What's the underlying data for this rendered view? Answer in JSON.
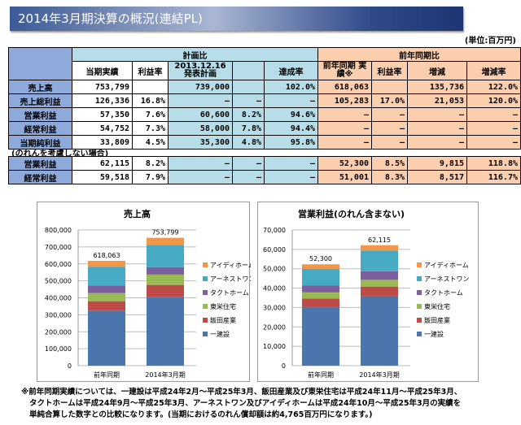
{
  "title": "2014年3月期決算の概況(連結PL)",
  "unit": "(単位:百万円)",
  "table": {
    "group_plan": "計画比",
    "group_prev": "前年同期比",
    "headers": [
      "当期実績",
      "利益率",
      "2013.12.16 発表計画",
      "",
      "達成率",
      "前年同期 実績※",
      "利益率",
      "増減",
      "増減率"
    ],
    "rows": [
      {
        "label": "売上高",
        "cells": [
          "753,799",
          "",
          "739,000",
          "",
          "102.0%",
          "618,063",
          "",
          "135,736",
          "122.0%"
        ]
      },
      {
        "label": "売上総利益",
        "cells": [
          "126,336",
          "16.8%",
          "–",
          "–",
          "–",
          "105,283",
          "17.0%",
          "21,053",
          "120.0%"
        ]
      },
      {
        "label": "営業利益",
        "cells": [
          "57,350",
          "7.6%",
          "60,600",
          "8.2%",
          "94.6%",
          "–",
          "–",
          "–",
          "–"
        ]
      },
      {
        "label": "経常利益",
        "cells": [
          "54,752",
          "7.3%",
          "58,000",
          "7.8%",
          "94.4%",
          "–",
          "–",
          "–",
          "–"
        ]
      },
      {
        "label": "当期純利益",
        "cells": [
          "33,809",
          "4.5%",
          "35,300",
          "4.8%",
          "95.8%",
          "–",
          "–",
          "–",
          "–"
        ]
      }
    ]
  },
  "note_goodwill": "(のれんを考慮しない場合)",
  "table2": {
    "rows": [
      {
        "label": "営業利益",
        "cells": [
          "62,115",
          "8.2%",
          "–",
          "–",
          "–",
          "52,300",
          "8.5%",
          "9,815",
          "118.8%"
        ]
      },
      {
        "label": "経常利益",
        "cells": [
          "59,518",
          "7.9%",
          "–",
          "–",
          "–",
          "51,001",
          "8.3%",
          "8,517",
          "116.7%"
        ]
      }
    ]
  },
  "chart_data": [
    {
      "type": "bar",
      "stacked": true,
      "title": "売上高",
      "categories": [
        "前年同期",
        "2014年3月期"
      ],
      "ylim": [
        0,
        800000
      ],
      "yticks": [
        "0",
        "100,000",
        "200,000",
        "300,000",
        "400,000",
        "500,000",
        "600,000",
        "700,000",
        "800,000"
      ],
      "tickstep": 100000,
      "totals": [
        "618,063",
        "753,799"
      ],
      "totalvals": [
        618063,
        753799
      ],
      "series": [
        {
          "name": "一建設",
          "color": "#4a76ad",
          "values": [
            324000,
            406000
          ]
        },
        {
          "name": "飯田産業",
          "color": "#be4b48",
          "values": [
            56000,
            70000
          ]
        },
        {
          "name": "東栄住宅",
          "color": "#98b954",
          "values": [
            48000,
            61000
          ]
        },
        {
          "name": "タクトホーム",
          "color": "#7d5fa0",
          "values": [
            45000,
            44000
          ]
        },
        {
          "name": "アーネストワン",
          "color": "#46aac5",
          "values": [
            110000,
            130000
          ]
        },
        {
          "name": "アイディホーム",
          "color": "#f59646",
          "values": [
            35063,
            42799
          ]
        }
      ]
    },
    {
      "type": "bar",
      "stacked": true,
      "title": "営業利益(のれん含まない)",
      "categories": [
        "前年同期",
        "2014年3月期"
      ],
      "ylim": [
        0,
        70000
      ],
      "yticks": [
        "0",
        "10,000",
        "20,000",
        "30,000",
        "40,000",
        "50,000",
        "60,000",
        "70,000"
      ],
      "tickstep": 10000,
      "totals": [
        "52,300",
        "62,115"
      ],
      "totalvals": [
        52300,
        62115
      ],
      "series": [
        {
          "name": "一建設",
          "color": "#4a76ad",
          "values": [
            30100,
            35800
          ]
        },
        {
          "name": "飯田産業",
          "color": "#be4b48",
          "values": [
            4500,
            5000
          ]
        },
        {
          "name": "東栄住宅",
          "color": "#98b954",
          "values": [
            3200,
            3500
          ]
        },
        {
          "name": "タクトホーム",
          "color": "#7d5fa0",
          "values": [
            3500,
            4400
          ]
        },
        {
          "name": "アーネストワン",
          "color": "#46aac5",
          "values": [
            8700,
            10700
          ]
        },
        {
          "name": "アイディホーム",
          "color": "#f59646",
          "values": [
            2300,
            2715
          ]
        }
      ]
    }
  ],
  "footnote": [
    "※前年同期実績については、一建設は平成24年2月～平成25年3月、飯田産業及び東栄住宅は平成24年11月～平成25年3月、",
    "タクトホームは平成24年9月～平成25年3月、アーネストワン及びアイディホームは平成24年10月～平成25年3月の実績を",
    "単純合算した数字との比較になります。(当期におけるのれん償却額は約4,765百万円になります。)"
  ]
}
